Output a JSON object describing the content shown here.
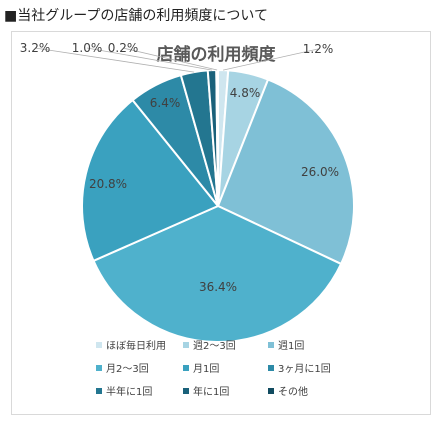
{
  "page": {
    "heading": "■当社グループの店舗の利用頻度について"
  },
  "chart_data": {
    "type": "pie",
    "title": "店舗の利用頻度",
    "legend_position": "bottom",
    "slices": [
      {
        "label": "ほぼ毎日利用",
        "value": 1.2,
        "display": "1.2%",
        "color": "#cfe6ef"
      },
      {
        "label": "週2〜3回",
        "value": 4.8,
        "display": "4.8%",
        "color": "#a7d4e3"
      },
      {
        "label": "週1回",
        "value": 26.0,
        "display": "26.0%",
        "color": "#7fc0d6"
      },
      {
        "label": "月2〜3回",
        "value": 36.4,
        "display": "36.4%",
        "color": "#4fb1cc"
      },
      {
        "label": "月1回",
        "value": 20.8,
        "display": "20.8%",
        "color": "#3aa1bf"
      },
      {
        "label": "3ヶ月に1回",
        "value": 6.4,
        "display": "6.4%",
        "color": "#2d8aa7"
      },
      {
        "label": "半年に1回",
        "value": 3.2,
        "display": "3.2%",
        "color": "#237690"
      },
      {
        "label": "年に1回",
        "value": 1.0,
        "display": "1.0%",
        "color": "#1a617a"
      },
      {
        "label": "その他",
        "value": 0.2,
        "display": "0.2%",
        "color": "#114b60"
      }
    ]
  }
}
